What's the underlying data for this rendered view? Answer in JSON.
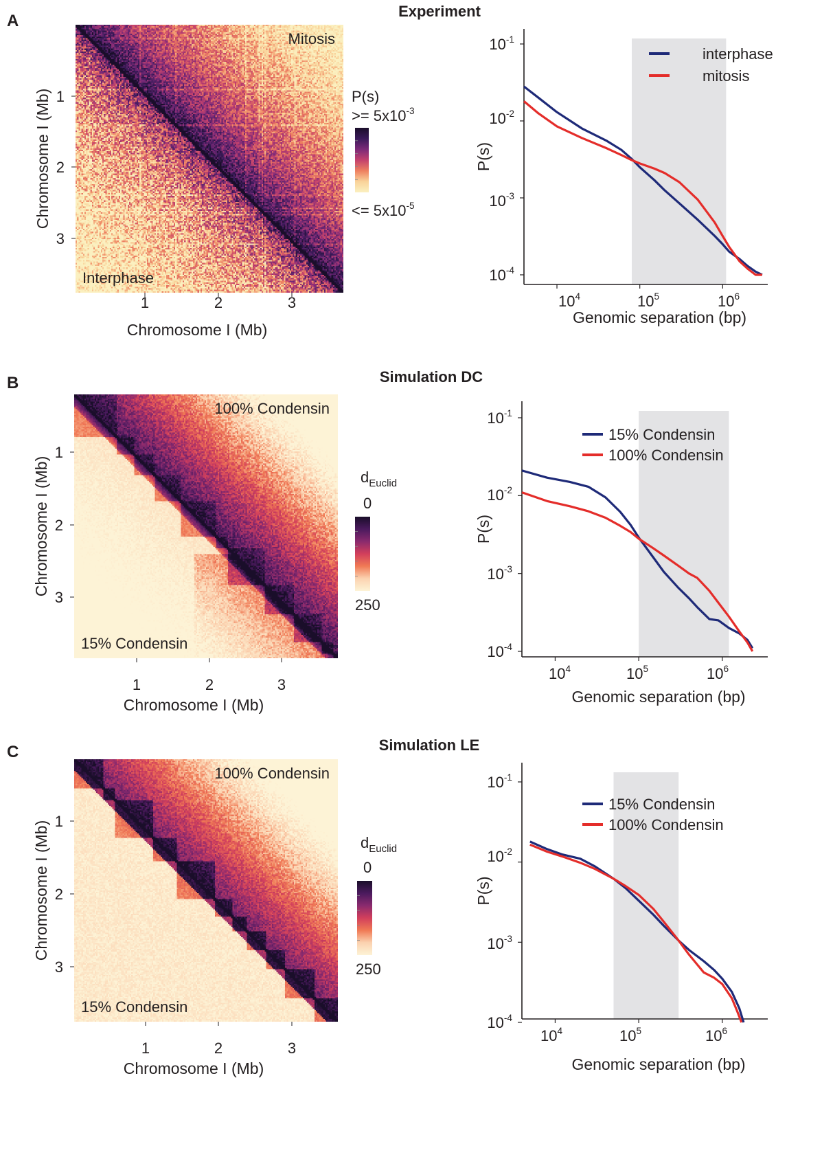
{
  "panels": [
    {
      "label": "A",
      "title": "Experiment",
      "heatmap": {
        "kind": "experiment",
        "xlabel": "Chromosome I (Mb)",
        "ylabel": "Chromosome I (Mb)",
        "ticks": [
          "1",
          "2",
          "3"
        ],
        "upper_label": "Mitosis",
        "lower_label": "Interphase",
        "colorbar": {
          "title": "P(s)",
          "top_label": ">= 5x10",
          "top_exp": "-3",
          "bottom_label": "<= 5x10",
          "bottom_exp": "-5",
          "colors": [
            "#1a0e2a",
            "#3b1a5a",
            "#7c2a78",
            "#c4426d",
            "#ee8060",
            "#f9d39a",
            "#fbf0c0"
          ]
        }
      },
      "curve": {
        "ylabel": "P(s)",
        "xlabel": "Genomic separation (bp)",
        "shade": [
          80000,
          1100000
        ],
        "legend": [
          "interphase",
          "mitosis"
        ]
      }
    },
    {
      "label": "B",
      "title": "Simulation DC",
      "heatmap": {
        "kind": "dc",
        "xlabel": "Chromosome I (Mb)",
        "ylabel": "Chromosome I (Mb)",
        "ticks": [
          "1",
          "2",
          "3"
        ],
        "upper_label": "100% Condensin",
        "lower_label": "15% Condensin",
        "colorbar": {
          "title_main": "d",
          "title_sub": "Euclid",
          "top_label": "0",
          "bottom_label": "250",
          "colors": [
            "#1a0e2a",
            "#4b1a5e",
            "#8a2a6e",
            "#d23f5c",
            "#f07a55",
            "#fbd2b0",
            "#fdf3d6"
          ]
        }
      },
      "curve": {
        "ylabel": "P(s)",
        "xlabel": "Genomic separation (bp)",
        "shade": [
          100000,
          1200000
        ],
        "legend": [
          "15% Condensin",
          "100% Condensin"
        ]
      }
    },
    {
      "label": "C",
      "title": "Simulation LE",
      "heatmap": {
        "kind": "le",
        "xlabel": "Chromosome I (Mb)",
        "ylabel": "Chromosome I (Mb)",
        "ticks": [
          "1",
          "2",
          "3"
        ],
        "upper_label": "100% Condensin",
        "lower_label": "15% Condensin",
        "colorbar": {
          "title_main": "d",
          "title_sub": "Euclid",
          "top_label": "0",
          "bottom_label": "250",
          "colors": [
            "#1a0e2a",
            "#4b1a5e",
            "#8a2a6e",
            "#d23f5c",
            "#f07a55",
            "#fbd2b0",
            "#fdf3d6"
          ]
        }
      },
      "curve": {
        "ylabel": "P(s)",
        "xlabel": "Genomic separation (bp)",
        "shade": [
          50000,
          300000
        ],
        "legend": [
          "15% Condensin",
          "100% Condensin"
        ]
      }
    }
  ],
  "chart_data": [
    {
      "type": "heatmap",
      "title": "Experiment",
      "xlabel": "Chromosome I (Mb)",
      "ylabel": "Chromosome I (Mb)",
      "xlim": [
        0,
        3.7
      ],
      "ylim": [
        0,
        3.7
      ],
      "upper_triangle": "Mitosis",
      "lower_triangle": "Interphase",
      "colorbar": {
        "label": "P(s)",
        "max": 0.005,
        "min": 5e-05
      }
    },
    {
      "type": "line",
      "title": "Experiment",
      "xlabel": "Genomic separation (bp)",
      "ylabel": "P(s)",
      "xscale": "log",
      "yscale": "log",
      "xlim": [
        4000,
        3500000
      ],
      "ylim": [
        0.0001,
        0.1
      ],
      "legend": "top-right",
      "series": [
        {
          "name": "interphase",
          "color": "#1e2a78",
          "x": [
            4000,
            6000,
            10000,
            20000,
            40000,
            60000,
            80000,
            100000,
            150000,
            200000,
            300000,
            500000,
            800000,
            1000000,
            1200000,
            1600000,
            2000000,
            2500000,
            3000000
          ],
          "y": [
            0.028,
            0.02,
            0.013,
            0.008,
            0.0055,
            0.0042,
            0.0032,
            0.0025,
            0.0017,
            0.00125,
            0.00085,
            0.00052,
            0.00032,
            0.00025,
            0.0002,
            0.00016,
            0.00013,
            0.00011,
            0.0001
          ]
        },
        {
          "name": "mitosis",
          "color": "#e42d2a",
          "x": [
            4000,
            6000,
            10000,
            20000,
            40000,
            60000,
            80000,
            100000,
            150000,
            200000,
            300000,
            500000,
            800000,
            1000000,
            1200000,
            1600000,
            2000000,
            2500000,
            3000000
          ],
          "y": [
            0.018,
            0.0125,
            0.0085,
            0.006,
            0.0044,
            0.0036,
            0.0031,
            0.0028,
            0.0024,
            0.0021,
            0.0016,
            0.00095,
            0.00048,
            0.00032,
            0.00023,
            0.00015,
            0.00012,
            0.0001,
            0.0001
          ]
        }
      ]
    },
    {
      "type": "heatmap",
      "title": "Simulation DC",
      "xlabel": "Chromosome I (Mb)",
      "ylabel": "Chromosome I (Mb)",
      "xlim": [
        0,
        3.7
      ],
      "ylim": [
        0,
        3.7
      ],
      "upper_triangle": "100% Condensin",
      "lower_triangle": "15% Condensin",
      "colorbar": {
        "label": "dEuclid",
        "min": 0,
        "max": 250
      }
    },
    {
      "type": "line",
      "title": "Simulation DC",
      "xlabel": "Genomic separation (bp)",
      "ylabel": "P(s)",
      "xscale": "log",
      "yscale": "log",
      "xlim": [
        4000,
        3500000
      ],
      "ylim": [
        0.0001,
        0.1
      ],
      "legend": "top-right",
      "series": [
        {
          "name": "15% Condensin",
          "color": "#1e2a78",
          "x": [
            4000,
            8000,
            15000,
            25000,
            40000,
            60000,
            80000,
            100000,
            150000,
            200000,
            300000,
            400000,
            500000,
            700000,
            900000,
            1200000,
            1600000,
            2000000,
            2300000
          ],
          "y": [
            0.021,
            0.017,
            0.015,
            0.013,
            0.0095,
            0.0062,
            0.0042,
            0.0029,
            0.0016,
            0.00105,
            0.00065,
            0.00048,
            0.00037,
            0.00026,
            0.00025,
            0.0002,
            0.00017,
            0.00014,
            0.00011
          ]
        },
        {
          "name": "100% Condensin",
          "color": "#e42d2a",
          "x": [
            4000,
            8000,
            15000,
            25000,
            40000,
            60000,
            80000,
            100000,
            150000,
            200000,
            300000,
            400000,
            500000,
            700000,
            900000,
            1200000,
            1600000,
            2000000,
            2300000
          ],
          "y": [
            0.011,
            0.0085,
            0.0073,
            0.0063,
            0.0052,
            0.0041,
            0.0034,
            0.0028,
            0.0021,
            0.0017,
            0.00125,
            0.001,
            0.00088,
            0.0006,
            0.00042,
            0.00028,
            0.00018,
            0.00013,
            0.0001
          ]
        }
      ]
    },
    {
      "type": "heatmap",
      "title": "Simulation LE",
      "xlabel": "Chromosome I (Mb)",
      "ylabel": "Chromosome I (Mb)",
      "xlim": [
        0,
        3.7
      ],
      "ylim": [
        0,
        3.7
      ],
      "upper_triangle": "100% Condensin",
      "lower_triangle": "15% Condensin",
      "colorbar": {
        "label": "dEuclid",
        "min": 0,
        "max": 250
      }
    },
    {
      "type": "line",
      "title": "Simulation LE",
      "xlabel": "Genomic separation (bp)",
      "ylabel": "P(s)",
      "xscale": "log",
      "yscale": "log",
      "xlim": [
        4000,
        3500000
      ],
      "ylim": [
        0.0001,
        0.1
      ],
      "legend": "top-right",
      "series": [
        {
          "name": "15% Condensin",
          "color": "#1e2a78",
          "x": [
            5000,
            8000,
            12000,
            20000,
            30000,
            50000,
            70000,
            100000,
            150000,
            200000,
            300000,
            400000,
            600000,
            800000,
            1000000,
            1300000,
            1600000,
            1800000
          ],
          "y": [
            0.018,
            0.0145,
            0.0125,
            0.011,
            0.0088,
            0.0062,
            0.0047,
            0.0033,
            0.0022,
            0.0016,
            0.00105,
            0.0008,
            0.00058,
            0.00045,
            0.00035,
            0.00024,
            0.00015,
            0.0001
          ]
        },
        {
          "name": "100% Condensin",
          "color": "#e42d2a",
          "x": [
            5000,
            8000,
            12000,
            20000,
            30000,
            50000,
            70000,
            100000,
            150000,
            200000,
            300000,
            400000,
            600000,
            800000,
            1000000,
            1300000,
            1500000,
            1700000
          ],
          "y": [
            0.0165,
            0.0135,
            0.0118,
            0.0098,
            0.0082,
            0.0062,
            0.005,
            0.0039,
            0.0026,
            0.0018,
            0.00105,
            0.0007,
            0.00042,
            0.00036,
            0.0003,
            0.0002,
            0.00014,
            0.0001
          ]
        }
      ]
    }
  ]
}
